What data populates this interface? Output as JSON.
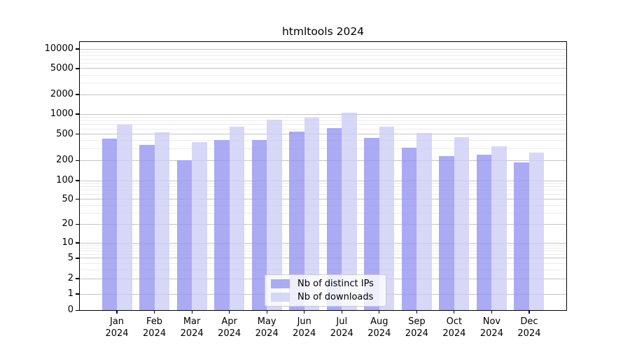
{
  "chart_data": {
    "type": "bar",
    "title": "htmltools 2024",
    "categories": [
      {
        "month": "Jan",
        "year": "2024"
      },
      {
        "month": "Feb",
        "year": "2024"
      },
      {
        "month": "Mar",
        "year": "2024"
      },
      {
        "month": "Apr",
        "year": "2024"
      },
      {
        "month": "May",
        "year": "2024"
      },
      {
        "month": "Jun",
        "year": "2024"
      },
      {
        "month": "Jul",
        "year": "2024"
      },
      {
        "month": "Aug",
        "year": "2024"
      },
      {
        "month": "Sep",
        "year": "2024"
      },
      {
        "month": "Oct",
        "year": "2024"
      },
      {
        "month": "Nov",
        "year": "2024"
      },
      {
        "month": "Dec",
        "year": "2024"
      }
    ],
    "series": [
      {
        "name": "Nb of distinct IPs",
        "color": "rgba(150,150,240,0.8)",
        "values": [
          430,
          345,
          200,
          410,
          410,
          545,
          610,
          440,
          315,
          235,
          245,
          190
        ]
      },
      {
        "name": "Nb of downloads",
        "color": "rgba(205,205,245,0.8)",
        "values": [
          690,
          530,
          375,
          650,
          825,
          890,
          1060,
          650,
          515,
          450,
          330,
          265
        ]
      }
    ],
    "y_axis": {
      "scale": "symlog",
      "major_ticks": [
        0,
        1,
        2,
        5,
        10,
        20,
        50,
        100,
        200,
        500,
        1000,
        2000,
        5000,
        10000
      ],
      "minor_tick_multipliers": [
        3,
        4,
        6,
        7,
        8,
        9
      ],
      "range": [
        0,
        12800
      ]
    },
    "xlabel": "",
    "ylabel": "",
    "grid": {
      "mode": "both",
      "major_color": "#c4c4c4",
      "minor_color": "#ececec"
    },
    "legend_position": "lower center"
  }
}
